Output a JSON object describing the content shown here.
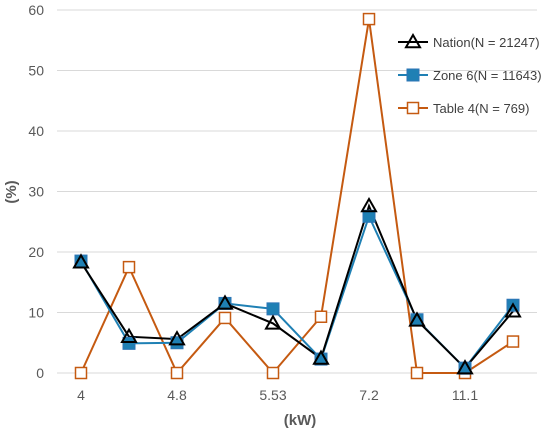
{
  "chart_data": {
    "type": "line",
    "xlabel": "(kW)",
    "ylabel": "(%)",
    "ylim": [
      0,
      60
    ],
    "yticks": [
      "0",
      "10",
      "20",
      "30",
      "40",
      "50",
      "60"
    ],
    "x_tick_labels": [
      "4",
      "",
      "4.8",
      "",
      "5.53",
      "",
      "7.2",
      "",
      "11.1",
      ""
    ],
    "grid": "horizontal",
    "legend_position": "top-right",
    "series": [
      {
        "name": "Nation(N = 21247)",
        "marker": "triangle",
        "color": "#000000",
        "values": [
          18.3,
          6.0,
          5.6,
          11.5,
          8.2,
          2.4,
          27.6,
          8.7,
          0.8,
          10.2
        ]
      },
      {
        "name": "Zone 6(N = 11643)",
        "marker": "square-filled",
        "color": "#1f80b4",
        "values": [
          18.5,
          4.9,
          5.0,
          11.5,
          10.6,
          2.3,
          25.9,
          8.8,
          0.8,
          11.2
        ]
      },
      {
        "name": "Table 4(N = 769)",
        "marker": "square-open",
        "color": "#c55a11",
        "values": [
          0,
          17.5,
          0,
          9.1,
          0,
          9.3,
          58.5,
          0,
          0,
          5.2
        ]
      }
    ]
  }
}
